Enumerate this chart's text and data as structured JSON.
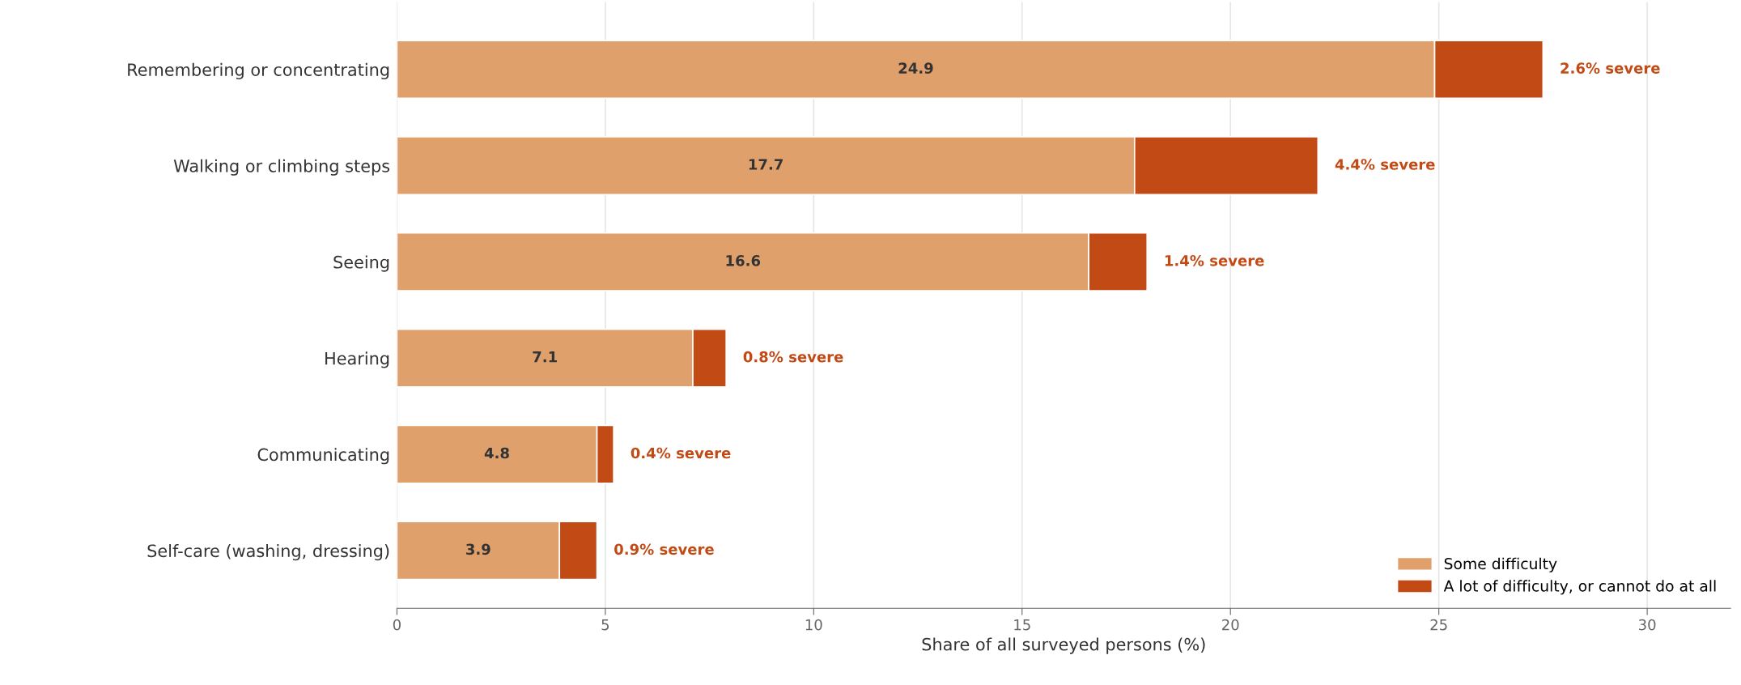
{
  "chart_data": {
    "type": "bar",
    "orientation": "horizontal",
    "stacked": true,
    "categories": [
      "Remembering or concentrating",
      "Walking or climbing steps",
      "Seeing",
      "Hearing",
      "Communicating",
      "Self-care (washing, dressing)"
    ],
    "series": [
      {
        "name": "Some difficulty",
        "color": "#e0a06b",
        "values": [
          24.9,
          17.7,
          16.6,
          7.1,
          4.8,
          3.9
        ],
        "value_labels": [
          "24.9",
          "17.7",
          "16.6",
          "7.1",
          "4.8",
          "3.9"
        ]
      },
      {
        "name": "A lot of difficulty, or cannot do at all",
        "color": "#c24a14",
        "values": [
          2.6,
          4.4,
          1.4,
          0.8,
          0.4,
          0.9
        ],
        "value_labels": [
          "2.6% severe",
          "4.4% severe",
          "1.4% severe",
          "0.8% severe",
          "0.4% severe",
          "0.9% severe"
        ]
      }
    ],
    "xlabel": "Share of all surveyed persons (%)",
    "xlim": [
      0,
      32
    ],
    "xticks": [
      0,
      5,
      10,
      15,
      20,
      25,
      30
    ],
    "grid": "x",
    "legend": "bottom right"
  }
}
